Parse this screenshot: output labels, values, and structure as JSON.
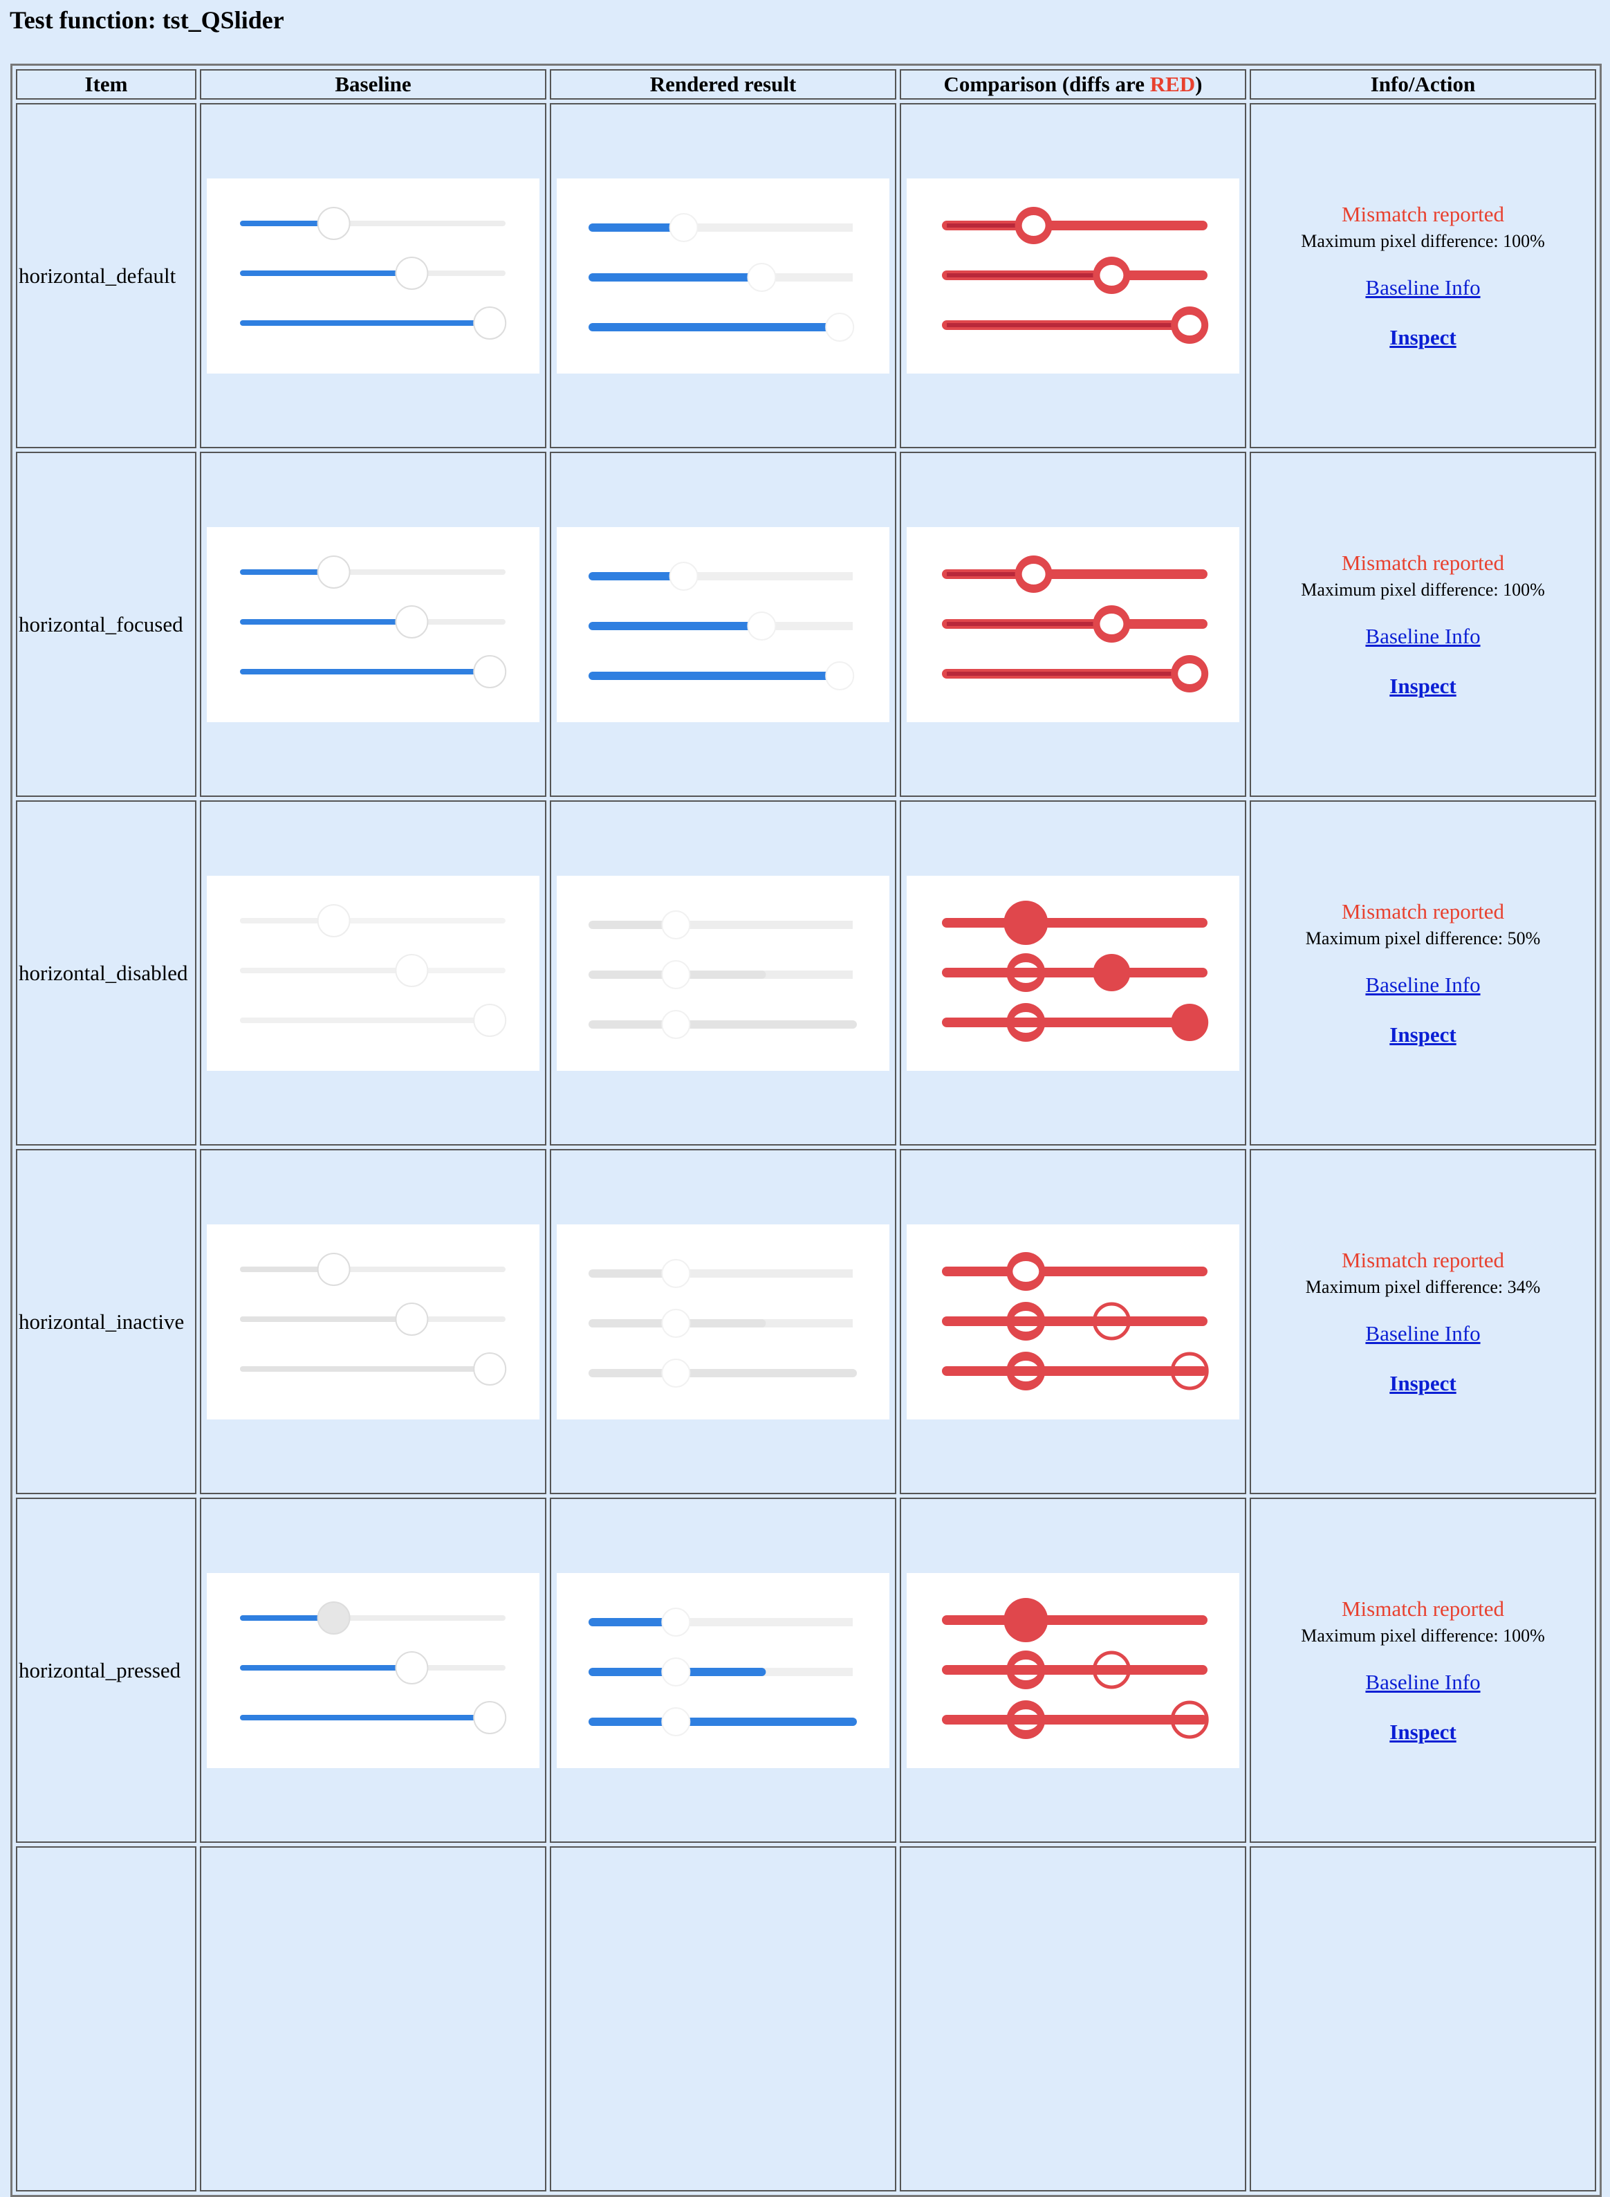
{
  "page_title": "Test function: tst_QSlider",
  "headers": {
    "item": "Item",
    "baseline": "Baseline",
    "rendered": "Rendered result",
    "comparison_prefix": "Comparison (diffs are ",
    "comparison_red": "RED",
    "comparison_suffix": ")",
    "info": "Info/Action"
  },
  "colors": {
    "page_bg": "#ddebfb",
    "slider_blue": "#2f7fe0",
    "diff_red": "#e0474c",
    "mismatch_text": "#e8412f",
    "link": "#0b1fd4"
  },
  "slider_values": [
    0.35,
    0.65,
    0.95
  ],
  "rows": [
    {
      "item": "horizontal_default",
      "status": "Mismatch reported",
      "max_diff": "Maximum pixel difference: 100%",
      "baseline_link": "Baseline Info",
      "inspect_link": "Inspect"
    },
    {
      "item": "horizontal_focused",
      "status": "Mismatch reported",
      "max_diff": "Maximum pixel difference: 100%",
      "baseline_link": "Baseline Info",
      "inspect_link": "Inspect"
    },
    {
      "item": "horizontal_disabled",
      "status": "Mismatch reported",
      "max_diff": "Maximum pixel difference: 50%",
      "baseline_link": "Baseline Info",
      "inspect_link": "Inspect"
    },
    {
      "item": "horizontal_inactive",
      "status": "Mismatch reported",
      "max_diff": "Maximum pixel difference: 34%",
      "baseline_link": "Baseline Info",
      "inspect_link": "Inspect"
    },
    {
      "item": "horizontal_pressed",
      "status": "Mismatch reported",
      "max_diff": "Maximum pixel difference: 100%",
      "baseline_link": "Baseline Info",
      "inspect_link": "Inspect"
    }
  ]
}
